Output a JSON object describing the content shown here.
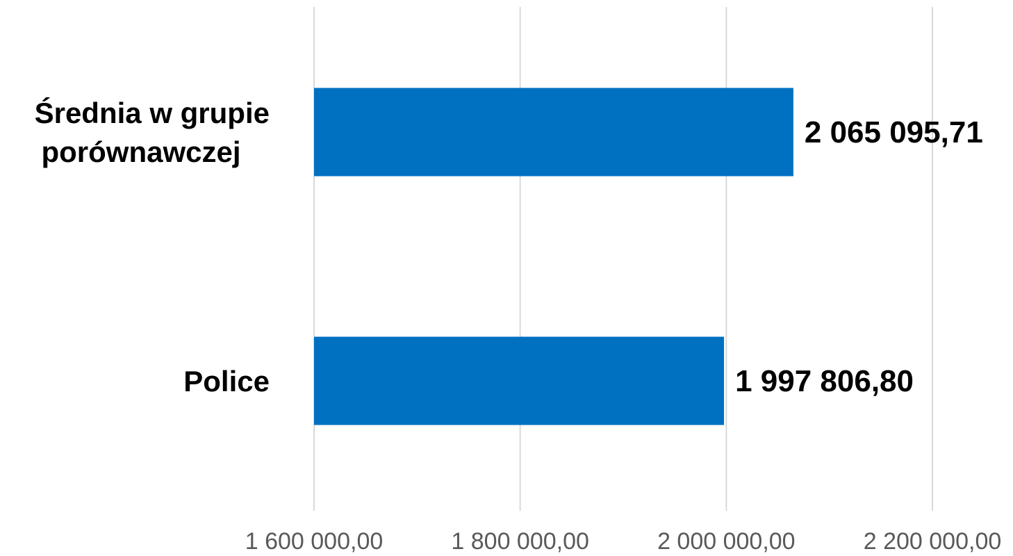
{
  "chart_data": {
    "type": "bar",
    "orientation": "horizontal",
    "categories": [
      "Średnia w grupie porównawczej",
      "Police"
    ],
    "category_label_lines": [
      [
        "Średnia w grupie",
        "porównawczej"
      ],
      [
        "Police"
      ]
    ],
    "values": [
      2065095.71,
      1997806.8
    ],
    "data_labels": [
      "2 065 095,71",
      "1 997 806,80"
    ],
    "xlim": [
      1600000,
      2200000
    ],
    "x_ticks": [
      1600000,
      1800000,
      2000000,
      2200000
    ],
    "x_tick_labels": [
      "1 600 000,00",
      "1 800 000,00",
      "2 000 000,00",
      "2 200 000,00"
    ],
    "grid": true,
    "legend": "none",
    "bar_color": "#0070c0",
    "grid_color": "#d9d9d9",
    "tick_label_color": "#595959"
  }
}
